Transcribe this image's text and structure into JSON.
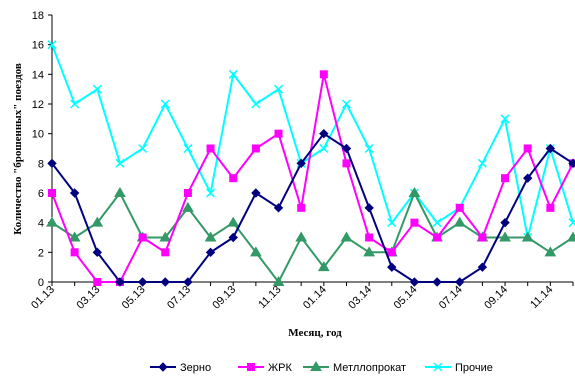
{
  "chart_data": {
    "type": "line",
    "title": "",
    "xlabel": "Месяц, год",
    "ylabel": "Количество \"брошенных\" поездов",
    "ylim": [
      0,
      18
    ],
    "yticks": [
      0,
      2,
      4,
      6,
      8,
      10,
      12,
      14,
      16,
      18
    ],
    "grid": false,
    "legend_position": "bottom",
    "x_tick_labels": [
      "01.13",
      "03.13",
      "05.13",
      "07.13",
      "09.13",
      "11.13",
      "01.14",
      "03.14",
      "05.14",
      "07.14",
      "09.14",
      "11.14"
    ],
    "categories": [
      "01.13",
      "02.13",
      "03.13",
      "04.13",
      "05.13",
      "06.13",
      "07.13",
      "08.13",
      "09.13",
      "10.13",
      "11.13",
      "12.13",
      "01.14",
      "02.14",
      "03.14",
      "04.14",
      "05.14",
      "06.14",
      "07.14",
      "08.14",
      "09.14",
      "10.14",
      "11.14",
      "12.14"
    ],
    "series": [
      {
        "name": "Зерно",
        "color": "#000080",
        "marker": "diamond",
        "values": [
          8,
          6,
          2,
          0,
          0,
          0,
          0,
          2,
          3,
          6,
          5,
          8,
          10,
          9,
          5,
          1,
          0,
          0,
          0,
          1,
          4,
          7,
          9,
          8
        ]
      },
      {
        "name": "ЖРК",
        "color": "#ff00ff",
        "marker": "square",
        "values": [
          6,
          2,
          0,
          0,
          3,
          2,
          6,
          9,
          7,
          9,
          10,
          5,
          14,
          8,
          3,
          2,
          4,
          3,
          5,
          3,
          7,
          9,
          5,
          8
        ]
      },
      {
        "name": "Метллопрокат",
        "color": "#339966",
        "marker": "triangle",
        "values": [
          4,
          3,
          4,
          6,
          3,
          3,
          5,
          3,
          4,
          2,
          0,
          3,
          1,
          3,
          2,
          2,
          6,
          3,
          4,
          3,
          3,
          3,
          2,
          3
        ]
      },
      {
        "name": "Прочие",
        "color": "#00ffff",
        "marker": "cross",
        "values": [
          16,
          12,
          13,
          8,
          9,
          12,
          9,
          6,
          14,
          12,
          13,
          8,
          9,
          12,
          9,
          4,
          6,
          4,
          5,
          8,
          11,
          3,
          9,
          4
        ]
      }
    ]
  }
}
